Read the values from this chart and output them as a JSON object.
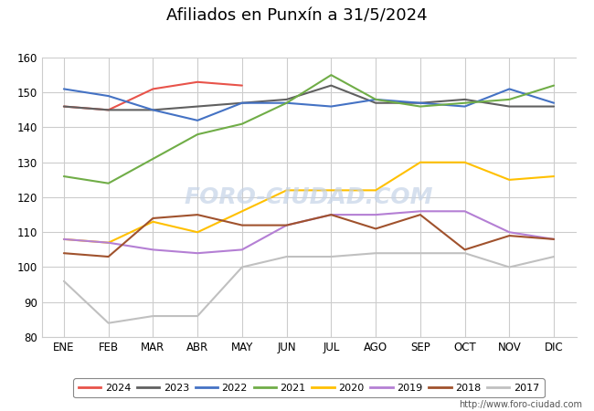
{
  "title": "Afiliados en Punxín a 31/5/2024",
  "title_bg_color": "#4f81bd",
  "xlabel": "",
  "ylabel": "",
  "ylim": [
    80,
    160
  ],
  "yticks": [
    80,
    90,
    100,
    110,
    120,
    130,
    140,
    150,
    160
  ],
  "months": [
    "ENE",
    "FEB",
    "MAR",
    "ABR",
    "MAY",
    "JUN",
    "JUL",
    "AGO",
    "SEP",
    "OCT",
    "NOV",
    "DIC"
  ],
  "fig_bg_color": "#ffffff",
  "plot_bg_color": "#ffffff",
  "grid_color": "#cccccc",
  "watermark": "FORO-CIUDAD.COM",
  "watermark_color": "#c5d4e8",
  "url": "http://www.foro-ciudad.com",
  "series": {
    "2024": {
      "color": "#e8534a",
      "data": [
        146,
        145,
        151,
        153,
        152,
        null,
        null,
        null,
        null,
        null,
        null,
        null
      ]
    },
    "2023": {
      "color": "#606060",
      "data": [
        146,
        145,
        145,
        146,
        147,
        148,
        152,
        147,
        147,
        148,
        146,
        146
      ]
    },
    "2022": {
      "color": "#4472c4",
      "data": [
        151,
        149,
        145,
        142,
        147,
        147,
        146,
        148,
        147,
        146,
        151,
        147
      ]
    },
    "2021": {
      "color": "#70ad47",
      "data": [
        126,
        124,
        131,
        138,
        141,
        147,
        155,
        148,
        146,
        147,
        148,
        152
      ]
    },
    "2020": {
      "color": "#ffc000",
      "data": [
        108,
        107,
        113,
        110,
        116,
        122,
        122,
        122,
        130,
        130,
        125,
        126
      ]
    },
    "2019": {
      "color": "#b47fd4",
      "data": [
        108,
        107,
        105,
        104,
        105,
        112,
        115,
        115,
        116,
        116,
        110,
        108
      ]
    },
    "2018": {
      "color": "#a0522d",
      "data": [
        104,
        103,
        114,
        115,
        112,
        112,
        115,
        111,
        115,
        105,
        109,
        108
      ]
    },
    "2017": {
      "color": "#c0c0c0",
      "data": [
        96,
        84,
        86,
        86,
        100,
        103,
        103,
        104,
        104,
        104,
        100,
        103
      ]
    }
  },
  "legend_order": [
    "2024",
    "2023",
    "2022",
    "2021",
    "2020",
    "2019",
    "2018",
    "2017"
  ]
}
